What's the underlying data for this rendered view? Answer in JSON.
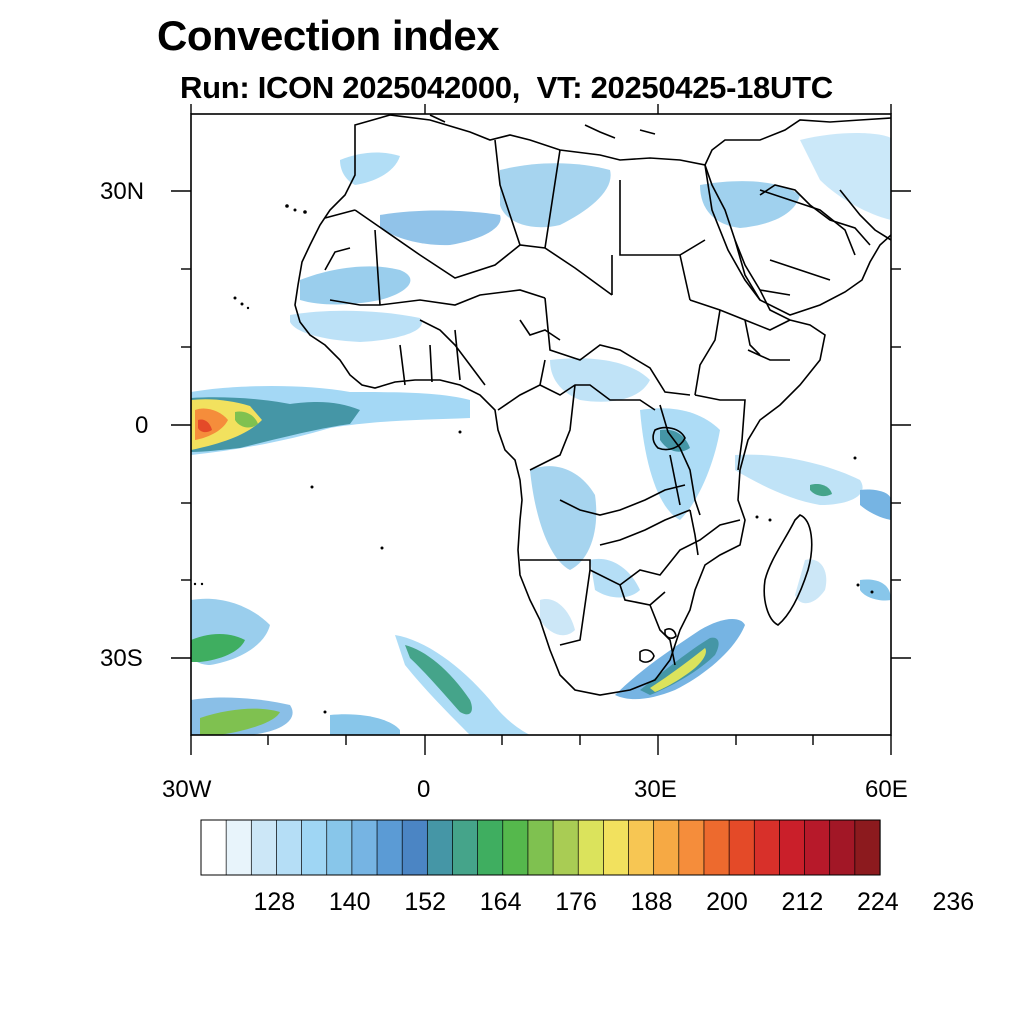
{
  "title": "Convection index",
  "subtitle": "Run: ICON 2025042000,  VT: 20250425-18UTC",
  "map": {
    "lat_labels": [
      {
        "text": "30N",
        "value": 30
      },
      {
        "text": "0",
        "value": 0
      },
      {
        "text": "30S",
        "value": -30
      }
    ],
    "lon_labels": [
      {
        "text": "30W",
        "value": -30
      },
      {
        "text": "0",
        "value": 0
      },
      {
        "text": "30E",
        "value": 30
      },
      {
        "text": "60E",
        "value": 60
      }
    ],
    "lon_range": [
      -30,
      60
    ],
    "lat_range": [
      -40,
      40
    ]
  },
  "colorbar": {
    "colors": [
      "#ffffff",
      "#e8f4fb",
      "#cce7f7",
      "#b5def6",
      "#9fd6f4",
      "#88c6ea",
      "#76b4e3",
      "#5b9bd5",
      "#4b85c4",
      "#4596a6",
      "#45a48a",
      "#3fae60",
      "#55b84c",
      "#7fc150",
      "#a9cc54",
      "#dbe35c",
      "#f2e15e",
      "#f7c653",
      "#f6a944",
      "#f58d3b",
      "#ed6a2e",
      "#e44a28",
      "#d8302a",
      "#ca1f2a",
      "#b7192a",
      "#a21726",
      "#8c1a1e"
    ],
    "labels": [
      "128",
      "140",
      "152",
      "164",
      "176",
      "188",
      "200",
      "212",
      "224",
      "236"
    ]
  }
}
